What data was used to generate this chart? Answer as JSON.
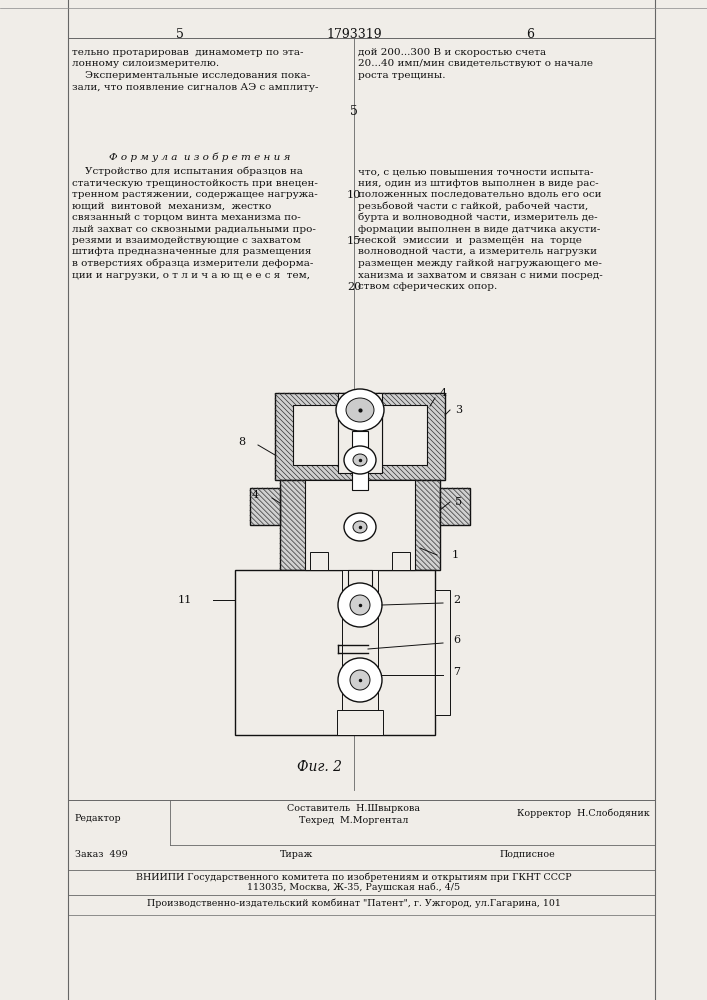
{
  "page_width": 7.07,
  "page_height": 10.0,
  "bg_color": "#f0ede8",
  "text_color": "#111111",
  "header": {
    "left_num": "5",
    "center_num": "1793319",
    "right_num": "6"
  },
  "left_col_top_text": [
    "тельно протарировав  динамометр по эта-",
    "лонному силоизмерителю.",
    "    Экспериментальные исследования пока-",
    "зали, что появление сигналов АЭ с амплиту-"
  ],
  "right_col_top_text": [
    "дой 200...300 В и скоростью счета",
    "20...40 имп/мин свидетельствуют о начале",
    "роста трещины."
  ],
  "formula_title": "Ф о р м у л а  и з о б р е т е н и я",
  "formula_left": [
    "    Устройство для испытания образцов на",
    "статическую трещиностойкость при внецен-",
    "тренном растяжении, содержащее нагружа-",
    "ющий  винтовой  механизм,  жестко",
    "связанный с торцом винта механизма по-",
    "лый захват со сквозными радиальными про-",
    "резями и взаимодействующие с захватом",
    "штифта предназначенные для размещения",
    "в отверстиях образца измерители деформа-",
    "ции и нагрузки, о т л и ч а ю щ е е с я  тем,"
  ],
  "formula_right": [
    "что, с целью повышения точности испыта-",
    "ния, один из штифтов выполнен в виде рас-",
    "положенных последовательно вдоль его оси",
    "резьбовой части с гайкой, рабочей части,",
    "бурта и волноводной части, измеритель де-",
    "формации выполнен в виде датчика акусти-",
    "ческой  эмиссии  и  размещён  на  торце",
    "волноводной части, а измеритель нагрузки",
    "размещен между гайкой нагружающего ме-",
    "ханизма и захватом и связан с ними посред-",
    "ством сферических опор."
  ],
  "fig_caption": "Фиг. 2",
  "footer_line1_left": "Редактор",
  "footer_line1_center1": "Составитель  Н.Швыркова",
  "footer_line1_center2": "Техред  М.Моргентал",
  "footer_line1_right": "Корректор  Н.Слободяник",
  "footer_order": "Заказ  499",
  "footer_tirazh": "Тираж",
  "footer_podp": "Подписное",
  "footer_line3": "ВНИИПИ Государственного комитета по изобретениям и открытиям при ГКНТ СССР",
  "footer_line4": "113035, Москва, Ж-35, Раушская наб., 4/5",
  "footer_line5": "Производственно-издательский комбинат \"Патент\", г. Ужгород, ул.Гагарина, 101"
}
